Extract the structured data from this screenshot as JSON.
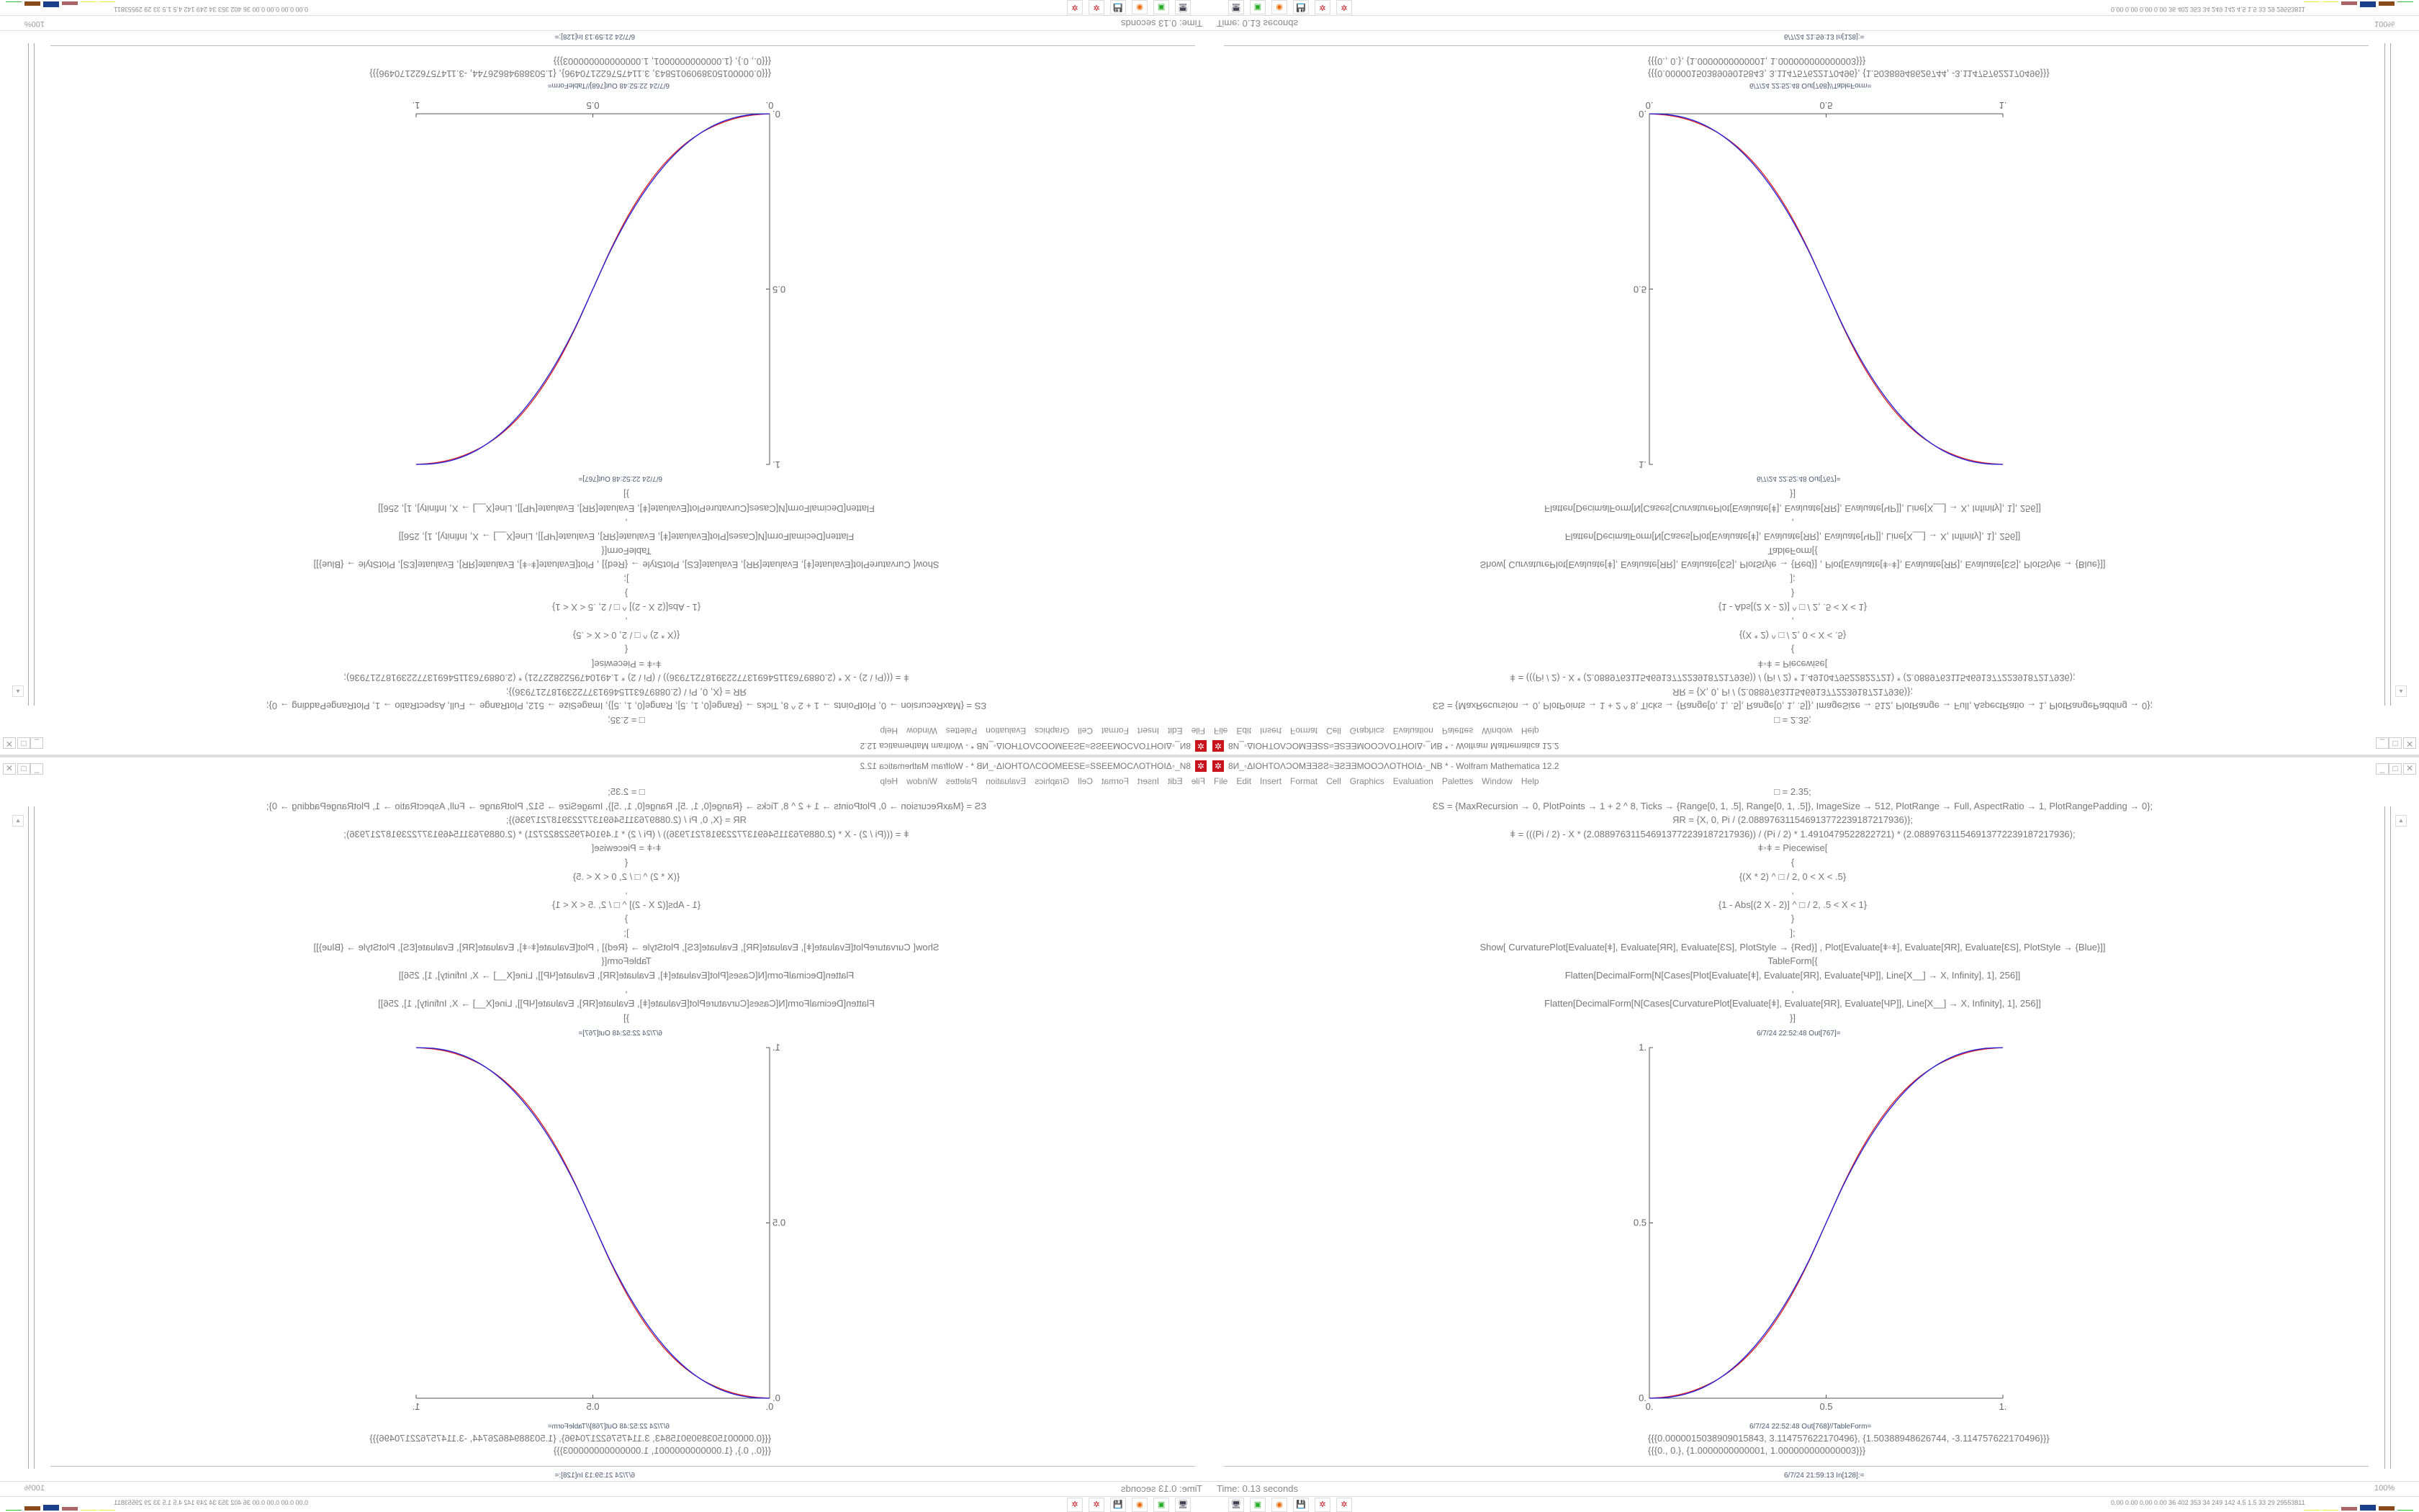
{
  "window": {
    "title": "8И_◦ΔIOHTOΛƆOMƎƎƧƧ≈ƎƧƎƎMOOƆΛOTHOIΔ◦_NB * - Wolfram Mathematica 12.2",
    "controls": {
      "minimize": "_",
      "maximize": "□",
      "close": "✕"
    }
  },
  "menu": [
    "File",
    "Edit",
    "Insert",
    "Format",
    "Cell",
    "Graphics",
    "Evaluation",
    "Palettes",
    "Window",
    "Help"
  ],
  "code_lines": [
    "□ = 2.35;",
    "ƐS = {MaxRecursion → 0, PlotPoints → 1 + 2 ^ 8, Ticks → {Range[0, 1, .5], Range[0, 1, .5]}, ImageSize → 512, PlotRange → Full, AspectRatio → 1, PlotRangePadding → 0};",
    "ЯR = {X, 0, Pi / (2.0889763115469137722391872179​36)};",
    "ǂ = (((Pi / 2) - X * (2.08897631154691377223918721793​6)) / (Pi / 2) * 1.4910479522822721) * (2.08897631154691377223918721793​6);",
    "ǂ◦ǂ = Piecewise[",
    "{",
    "{(X * 2) ^ □ / 2, 0 < X < .5}",
    ",",
    "{1 - Abs[(2 X - 2)] ^ □ / 2, .5 < X < 1}",
    "}",
    "];",
    "Show[   CurvaturePlot[Evaluate[ǂ], Evaluate[ЯR], Evaluate[ƐS], PlotStyle → {Red}]   ,   Plot[Evaluate[ǂ◦ǂ], Evaluate[ЯR], Evaluate[ƐS],  PlotStyle → {Blue}]]",
    "TableForm[{",
    "Flatten[DecimalForm[N[Cases[Plot[Evaluate[ǂ], Evaluate[ЯR], Evaluate[ЧP]], Line[X__] → X, Infinity], 1], 256]]",
    ",",
    "Flatten[DecimalForm[N[Cases[CurvaturePlot[Evaluate[ǂ], Evaluate[ЯR], Evaluate[ЧP]], Line[X__] → X, Infinity], 1], 256]]",
    "}]"
  ],
  "cells": {
    "out767_label": "6/7/24 22:52:48 Out[767]=",
    "out768_label": "6/7/24 22:52:48 Out[768]//TableForm=",
    "out768_rows": [
      "{{{0.0000015038909015843, 3.114757622170496}, {1.50388948626744, -3.114757622170496}}}",
      "{{{0., 0.}, {1.0000000000001, 1.000000000000003}}}"
    ],
    "in128_label": "6/7/24 21:59:13 In[128]:="
  },
  "status": {
    "time": "Time: 0.13 seconds",
    "zoom": "100%"
  },
  "taskbar": {
    "icons": [
      "remote-desktop-icon",
      "terminal-icon",
      "firefox-icon",
      "floppy-64-icon",
      "mathematica-icon",
      "mathematica-icon"
    ],
    "tray_text": "0.00 0.00 0.00 0.00  36  402  353  34  249  142  4.5  1.5  33  29  29553811"
  },
  "chart_data": {
    "type": "line",
    "title": "",
    "xlabel": "",
    "ylabel": "",
    "xlim": [
      0,
      1
    ],
    "ylim": [
      0,
      1
    ],
    "xticks": [
      "0.",
      "0.5",
      "1."
    ],
    "yticks": [
      "0.",
      "0.5",
      "1."
    ],
    "xtick_values": [
      0,
      0.5,
      1
    ],
    "ytick_values": [
      0,
      0.5,
      1
    ],
    "grid": false,
    "x": [
      0,
      0.05,
      0.1,
      0.15,
      0.2,
      0.25,
      0.3,
      0.35,
      0.4,
      0.45,
      0.5,
      0.55,
      0.6,
      0.65,
      0.7,
      0.75,
      0.8,
      0.85,
      0.9,
      0.95,
      1
    ],
    "series": [
      {
        "color": "#e02020",
        "values": [
          0,
          0.004,
          0.014,
          0.032,
          0.058,
          0.095,
          0.145,
          0.21,
          0.29,
          0.388,
          0.5,
          0.612,
          0.71,
          0.79,
          0.855,
          0.905,
          0.942,
          0.968,
          0.986,
          0.996,
          1
        ]
      },
      {
        "color": "#2020e0",
        "values": [
          0,
          0.0022,
          0.0114,
          0.0295,
          0.0581,
          0.0981,
          0.1506,
          0.2163,
          0.296,
          0.3904,
          0.5,
          0.6096,
          0.704,
          0.7837,
          0.8494,
          0.9019,
          0.9419,
          0.9705,
          0.9886,
          0.9978,
          1
        ]
      }
    ]
  }
}
